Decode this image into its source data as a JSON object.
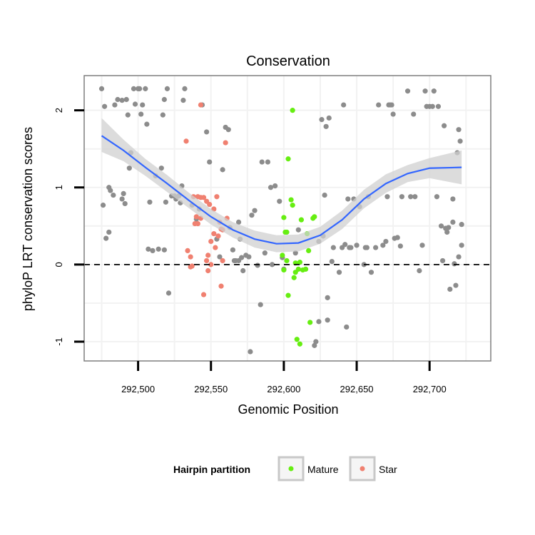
{
  "chart_data": {
    "type": "scatter",
    "title": "Conservation",
    "xlabel": "Genomic Position",
    "ylabel": "phyloP LRT conservation scores",
    "xlim": [
      292463,
      292742
    ],
    "ylim": [
      -1.25,
      2.45
    ],
    "x_ticks": [
      292500,
      292550,
      292600,
      292650,
      292700
    ],
    "x_tick_labels": [
      "292,500",
      "292,550",
      "292,600",
      "292,650",
      "292,700"
    ],
    "y_ticks": [
      -1,
      0,
      1,
      2
    ],
    "y_tick_labels": [
      "-1",
      "0",
      "1",
      "2"
    ],
    "grid": true,
    "reference_line": 0,
    "colors": {
      "background_points": "#8c8c8c",
      "Mature": "#66ee11",
      "Star": "#f08070",
      "smooth": "#3366ff",
      "ribbon": "#d0d0d0"
    },
    "legend": {
      "title": "Hairpin partition",
      "position": "bottom",
      "entries": [
        "Mature",
        "Star"
      ]
    },
    "series": [
      {
        "group": "background",
        "points": [
          [
            292475,
            2.28
          ],
          [
            292477,
            2.05
          ],
          [
            292476,
            0.77
          ],
          [
            292478,
            0.34
          ],
          [
            292480,
            0.42
          ],
          [
            292480,
            1.0
          ],
          [
            292481,
            0.96
          ],
          [
            292483,
            0.9
          ],
          [
            292484,
            2.07
          ],
          [
            292486,
            2.14
          ],
          [
            292489,
            2.13
          ],
          [
            292489,
            0.85
          ],
          [
            292490,
            0.92
          ],
          [
            292491,
            0.79
          ],
          [
            292492,
            2.14
          ],
          [
            292493,
            1.94
          ],
          [
            292494,
            1.25
          ],
          [
            292495,
            1.45
          ],
          [
            292497,
            2.28
          ],
          [
            292498,
            2.08
          ],
          [
            292500,
            2.28
          ],
          [
            292501,
            2.28
          ],
          [
            292502,
            1.95
          ],
          [
            292503,
            2.07
          ],
          [
            292505,
            2.28
          ],
          [
            292506,
            1.82
          ],
          [
            292507,
            0.2
          ],
          [
            292508,
            0.81
          ],
          [
            292510,
            0.18
          ],
          [
            292512,
            1.15
          ],
          [
            292514,
            0.2
          ],
          [
            292516,
            1.25
          ],
          [
            292517,
            1.94
          ],
          [
            292518,
            0.19
          ],
          [
            292518,
            2.14
          ],
          [
            292519,
            0.81
          ],
          [
            292520,
            2.28
          ],
          [
            292521,
            -0.37
          ],
          [
            292523,
            0.89
          ],
          [
            292525,
            0.89
          ],
          [
            292526,
            0.85
          ],
          [
            292528,
            0.89
          ],
          [
            292529,
            0.8
          ],
          [
            292530,
            1.02
          ],
          [
            292531,
            2.13
          ],
          [
            292532,
            2.28
          ],
          [
            292537,
            0.77
          ],
          [
            292540,
            0.59
          ],
          [
            292542,
            0.72
          ],
          [
            292544,
            2.07
          ],
          [
            292547,
            1.72
          ],
          [
            292549,
            1.33
          ],
          [
            292554,
            0.33
          ],
          [
            292556,
            0.1
          ],
          [
            292558,
            1.23
          ],
          [
            292560,
            1.78
          ],
          [
            292562,
            1.75
          ],
          [
            292563,
            0.48
          ],
          [
            292565,
            0.19
          ],
          [
            292566,
            0.05
          ],
          [
            292567,
            0.05
          ],
          [
            292569,
            0.55
          ],
          [
            292569,
            0.05
          ],
          [
            292570,
            0.33
          ],
          [
            292571,
            0.09
          ],
          [
            292572,
            -0.08
          ],
          [
            292574,
            0.12
          ],
          [
            292576,
            0.1
          ],
          [
            292577,
            -1.13
          ],
          [
            292578,
            0.64
          ],
          [
            292580,
            0.7
          ],
          [
            292582,
            -0.01
          ],
          [
            292584,
            -0.52
          ],
          [
            292585,
            1.33
          ],
          [
            292587,
            0.15
          ],
          [
            292589,
            1.33
          ],
          [
            292591,
            1.0
          ],
          [
            292592,
            0.0
          ],
          [
            292594,
            1.02
          ],
          [
            292597,
            0.82
          ],
          [
            292599,
            0.09
          ],
          [
            292600,
            -0.06
          ],
          [
            292608,
            0.15
          ],
          [
            292610,
            0.45
          ],
          [
            292624,
            0.3
          ],
          [
            292626,
            1.88
          ],
          [
            292627,
            0.37
          ],
          [
            292629,
            1.79
          ],
          [
            292633,
            0.04
          ],
          [
            292634,
            0.22
          ],
          [
            292638,
            -0.1
          ],
          [
            292640,
            0.22
          ],
          [
            292641,
            2.07
          ],
          [
            292642,
            0.26
          ],
          [
            292643,
            -0.81
          ],
          [
            292644,
            0.85
          ],
          [
            292645,
            0.22
          ],
          [
            292646,
            0.22
          ],
          [
            292648,
            0.85
          ],
          [
            292650,
            0.25
          ],
          [
            292652,
            0.75
          ],
          [
            292655,
            0.0
          ],
          [
            292656,
            0.22
          ],
          [
            292657,
            0.22
          ],
          [
            292658,
            0.88
          ],
          [
            292660,
            -0.1
          ],
          [
            292663,
            0.22
          ],
          [
            292665,
            2.07
          ],
          [
            292668,
            0.25
          ],
          [
            292670,
            0.3
          ],
          [
            292671,
            0.88
          ],
          [
            292672,
            2.07
          ],
          [
            292673,
            2.07
          ],
          [
            292674,
            2.07
          ],
          [
            292675,
            1.95
          ],
          [
            292676,
            0.34
          ],
          [
            292678,
            0.35
          ],
          [
            292680,
            0.24
          ],
          [
            292681,
            0.88
          ],
          [
            292685,
            2.25
          ],
          [
            292687,
            0.88
          ],
          [
            292689,
            1.95
          ],
          [
            292690,
            0.88
          ],
          [
            292693,
            -0.08
          ],
          [
            292695,
            0.25
          ],
          [
            292697,
            2.25
          ],
          [
            292698,
            2.05
          ],
          [
            292700,
            2.05
          ],
          [
            292702,
            2.05
          ],
          [
            292703,
            2.25
          ],
          [
            292705,
            0.88
          ],
          [
            292706,
            2.05
          ],
          [
            292708,
            0.5
          ],
          [
            292709,
            0.05
          ],
          [
            292710,
            1.8
          ],
          [
            292711,
            0.47
          ],
          [
            292712,
            0.42
          ],
          [
            292713,
            0.48
          ],
          [
            292714,
            -0.32
          ],
          [
            292716,
            0.85
          ],
          [
            292716,
            0.55
          ],
          [
            292717,
            0.01
          ],
          [
            292718,
            -0.27
          ],
          [
            292719,
            1.45
          ],
          [
            292720,
            0.1
          ],
          [
            292721,
            1.6
          ],
          [
            292722,
            0.25
          ],
          [
            292720,
            1.75
          ],
          [
            292722,
            0.52
          ],
          [
            292631,
            1.9
          ],
          [
            292630,
            -0.43
          ],
          [
            292630,
            -0.72
          ],
          [
            292621,
            -1.05
          ],
          [
            292622,
            -1.0
          ],
          [
            292624,
            -0.74
          ],
          [
            292628,
            0.9
          ]
        ]
      },
      {
        "group": "Mature",
        "points": [
          [
            292606,
            2.0
          ],
          [
            292603,
            1.37
          ],
          [
            292605,
            0.84
          ],
          [
            292606,
            0.77
          ],
          [
            292600,
            0.61
          ],
          [
            292601,
            0.42
          ],
          [
            292602,
            0.42
          ],
          [
            292599,
            0.12
          ],
          [
            292600,
            -0.07
          ],
          [
            292602,
            0.05
          ],
          [
            292603,
            -0.4
          ],
          [
            292607,
            -0.17
          ],
          [
            292608,
            -0.1
          ],
          [
            292608,
            0.02
          ],
          [
            292610,
            -0.06
          ],
          [
            292611,
            0.03
          ],
          [
            292613,
            -0.07
          ],
          [
            292615,
            -0.06
          ],
          [
            292612,
            0.58
          ],
          [
            292616,
            0.4
          ],
          [
            292617,
            0.18
          ],
          [
            292620,
            0.6
          ],
          [
            292621,
            0.62
          ],
          [
            292618,
            -0.75
          ],
          [
            292609,
            -0.97
          ],
          [
            292611,
            -1.03
          ]
        ]
      },
      {
        "group": "Star",
        "points": [
          [
            292543,
            2.07
          ],
          [
            292533,
            1.6
          ],
          [
            292538,
            0.88
          ],
          [
            292541,
            0.88
          ],
          [
            292543,
            0.87
          ],
          [
            292545,
            0.87
          ],
          [
            292547,
            0.82
          ],
          [
            292540,
            0.62
          ],
          [
            292543,
            0.6
          ],
          [
            292539,
            0.53
          ],
          [
            292541,
            0.53
          ],
          [
            292549,
            0.78
          ],
          [
            292552,
            0.72
          ],
          [
            292554,
            0.88
          ],
          [
            292556,
            0.55
          ],
          [
            292557,
            0.46
          ],
          [
            292558,
            0.45
          ],
          [
            292552,
            0.4
          ],
          [
            292555,
            0.37
          ],
          [
            292553,
            0.22
          ],
          [
            292550,
            0.3
          ],
          [
            292548,
            0.12
          ],
          [
            292534,
            0.18
          ],
          [
            292536,
            0.1
          ],
          [
            292536,
            -0.03
          ],
          [
            292537,
            -0.02
          ],
          [
            292547,
            0.05
          ],
          [
            292550,
            0.0
          ],
          [
            292548,
            -0.08
          ],
          [
            292561,
            0.6
          ],
          [
            292558,
            0.05
          ],
          [
            292557,
            -0.28
          ],
          [
            292545,
            -0.39
          ],
          [
            292560,
            1.58
          ]
        ]
      }
    ],
    "smooth": [
      [
        292475,
        1.67
      ],
      [
        292490,
        1.48
      ],
      [
        292505,
        1.26
      ],
      [
        292520,
        1.05
      ],
      [
        292535,
        0.83
      ],
      [
        292550,
        0.62
      ],
      [
        292565,
        0.45
      ],
      [
        292580,
        0.33
      ],
      [
        292595,
        0.27
      ],
      [
        292610,
        0.28
      ],
      [
        292625,
        0.38
      ],
      [
        292640,
        0.58
      ],
      [
        292655,
        0.85
      ],
      [
        292670,
        1.05
      ],
      [
        292685,
        1.18
      ],
      [
        292700,
        1.25
      ],
      [
        292722,
        1.26
      ]
    ],
    "ribbon_lower": [
      [
        292475,
        1.46
      ],
      [
        292490,
        1.34
      ],
      [
        292505,
        1.15
      ],
      [
        292520,
        0.94
      ],
      [
        292535,
        0.73
      ],
      [
        292550,
        0.52
      ],
      [
        292565,
        0.35
      ],
      [
        292580,
        0.22
      ],
      [
        292595,
        0.16
      ],
      [
        292610,
        0.17
      ],
      [
        292625,
        0.27
      ],
      [
        292640,
        0.46
      ],
      [
        292655,
        0.73
      ],
      [
        292670,
        0.93
      ],
      [
        292685,
        1.07
      ],
      [
        292700,
        1.12
      ],
      [
        292722,
        1.04
      ]
    ],
    "ribbon_upper": [
      [
        292475,
        1.9
      ],
      [
        292490,
        1.62
      ],
      [
        292505,
        1.37
      ],
      [
        292520,
        1.16
      ],
      [
        292535,
        0.93
      ],
      [
        292550,
        0.72
      ],
      [
        292565,
        0.55
      ],
      [
        292580,
        0.44
      ],
      [
        292595,
        0.38
      ],
      [
        292610,
        0.39
      ],
      [
        292625,
        0.49
      ],
      [
        292640,
        0.7
      ],
      [
        292655,
        0.97
      ],
      [
        292670,
        1.17
      ],
      [
        292685,
        1.29
      ],
      [
        292700,
        1.38
      ],
      [
        292722,
        1.48
      ]
    ]
  }
}
